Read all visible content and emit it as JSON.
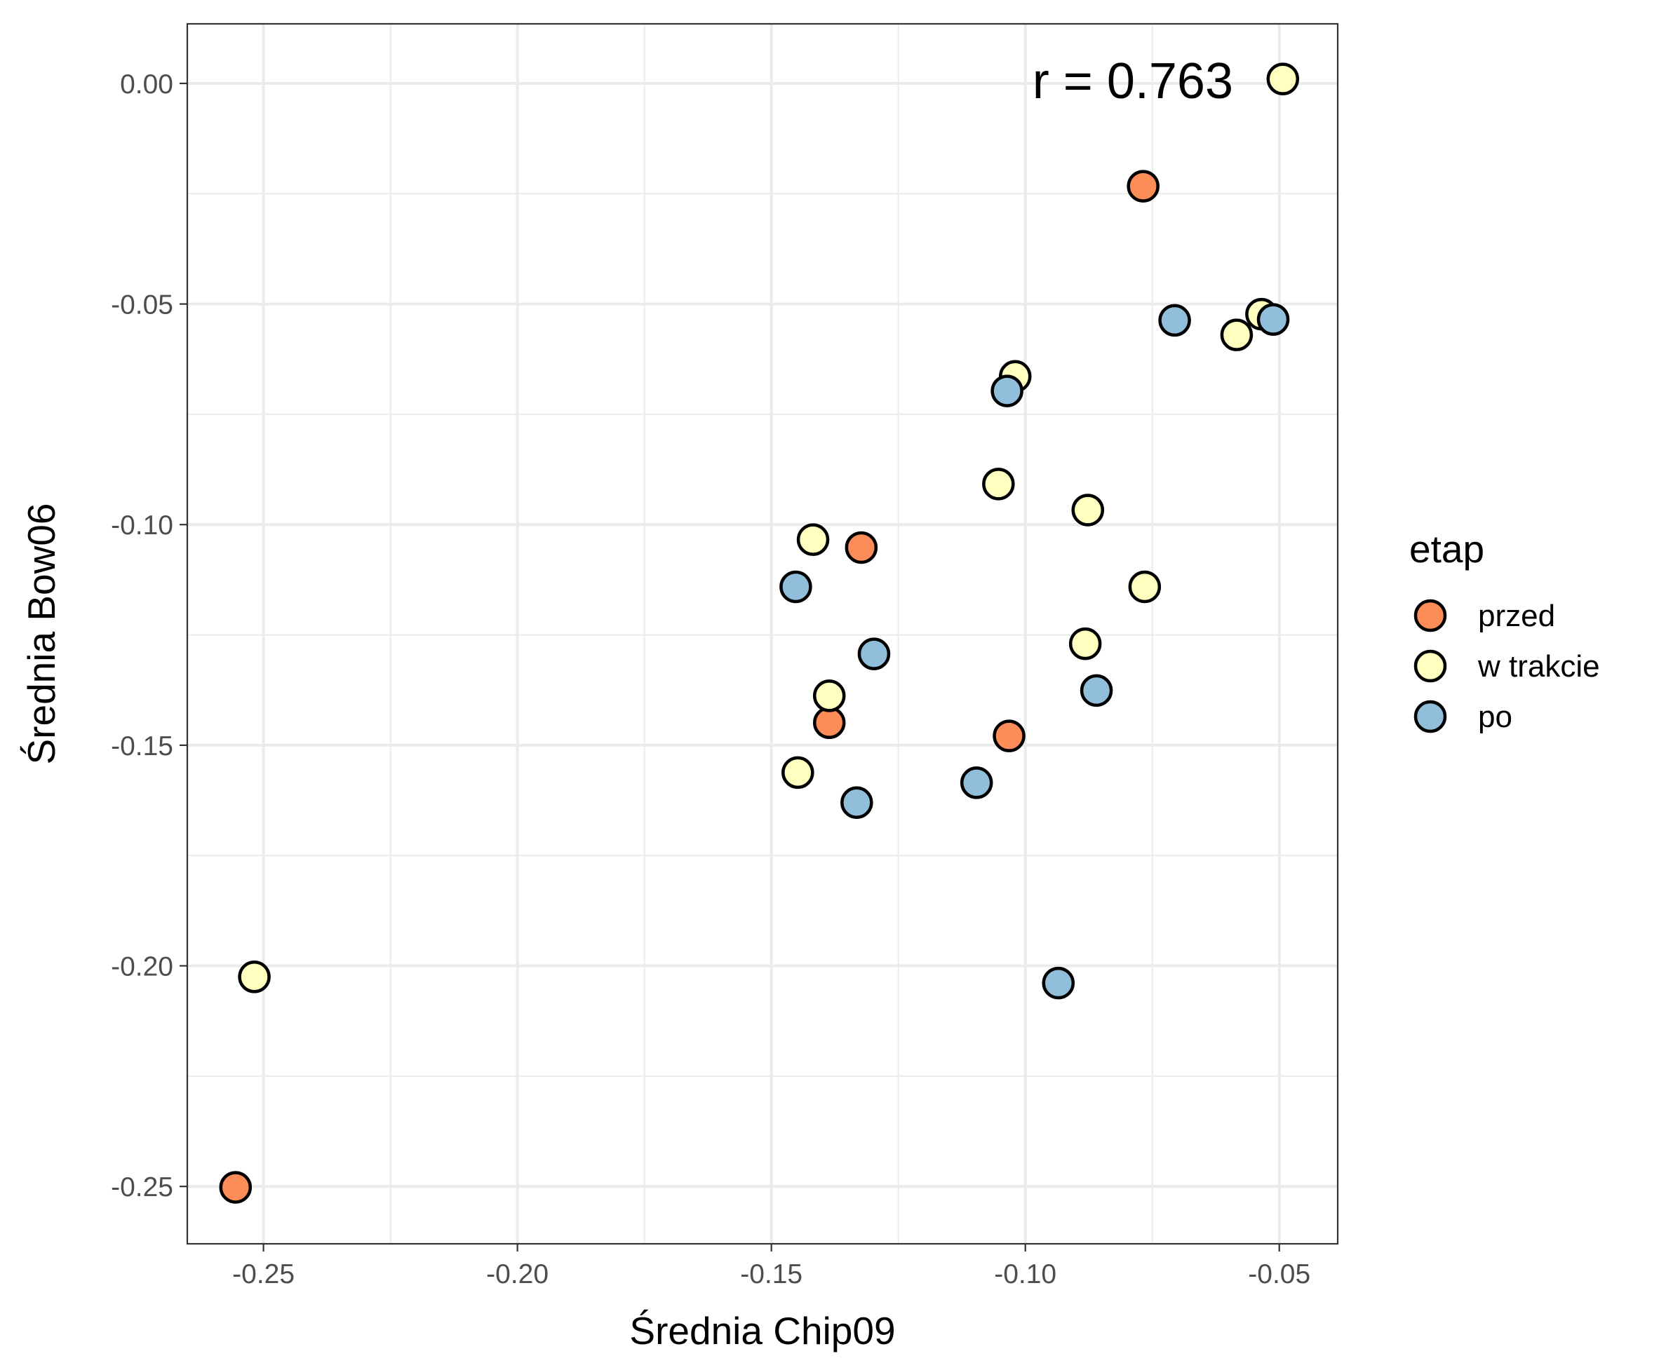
{
  "chart_data": {
    "type": "scatter",
    "xlabel": "Średnia Chip09",
    "ylabel": "Średnia Bow06",
    "xlim": [
      -0.265,
      -0.0385
    ],
    "ylim": [
      -0.263,
      0.0135
    ],
    "x_ticks": [
      -0.25,
      -0.2,
      -0.15,
      -0.1,
      -0.05
    ],
    "x_tick_labels": [
      "-0.25",
      "-0.20",
      "-0.15",
      "-0.10",
      "-0.05"
    ],
    "y_ticks": [
      0.0,
      -0.05,
      -0.1,
      -0.15,
      -0.2,
      -0.25
    ],
    "y_tick_labels": [
      "0.00",
      "-0.05",
      "-0.10",
      "-0.15",
      "-0.20",
      "-0.25"
    ],
    "grid": true,
    "legend_position": "right",
    "annotation": "r = 0.763",
    "legend": {
      "title": "etap",
      "entries": [
        {
          "label": "przed",
          "color": "#FC8D59"
        },
        {
          "label": "w trakcie",
          "color": "#FFFFBF"
        },
        {
          "label": "po",
          "color": "#91BFDB"
        }
      ]
    },
    "series": [
      {
        "name": "przed",
        "color": "#FC8D59",
        "points": [
          {
            "x": -0.2555,
            "y": -0.2502
          },
          {
            "x": -0.1386,
            "y": -0.1449
          },
          {
            "x": -0.1323,
            "y": -0.1052
          },
          {
            "x": -0.1032,
            "y": -0.1479
          },
          {
            "x": -0.0768,
            "y": -0.0233
          }
        ]
      },
      {
        "name": "w trakcie",
        "color": "#FFFFBF",
        "points": [
          {
            "x": -0.2518,
            "y": -0.2025
          },
          {
            "x": -0.1418,
            "y": -0.1034
          },
          {
            "x": -0.1448,
            "y": -0.1562
          },
          {
            "x": -0.1386,
            "y": -0.1388
          },
          {
            "x": -0.1053,
            "y": -0.0908
          },
          {
            "x": -0.102,
            "y": -0.0664
          },
          {
            "x": -0.0882,
            "y": -0.127
          },
          {
            "x": -0.0877,
            "y": -0.0967
          },
          {
            "x": -0.0765,
            "y": -0.1141
          },
          {
            "x": -0.0584,
            "y": -0.057
          },
          {
            "x": -0.0535,
            "y": -0.0523
          },
          {
            "x": -0.0493,
            "y": 0.001
          }
        ]
      },
      {
        "name": "po",
        "color": "#91BFDB",
        "points": [
          {
            "x": -0.1452,
            "y": -0.1141
          },
          {
            "x": -0.1298,
            "y": -0.1293
          },
          {
            "x": -0.1332,
            "y": -0.163
          },
          {
            "x": -0.1096,
            "y": -0.1585
          },
          {
            "x": -0.1036,
            "y": -0.0697
          },
          {
            "x": -0.0935,
            "y": -0.2039
          },
          {
            "x": -0.086,
            "y": -0.1376
          },
          {
            "x": -0.0706,
            "y": -0.0537
          },
          {
            "x": -0.0512,
            "y": -0.0535
          }
        ]
      }
    ]
  }
}
